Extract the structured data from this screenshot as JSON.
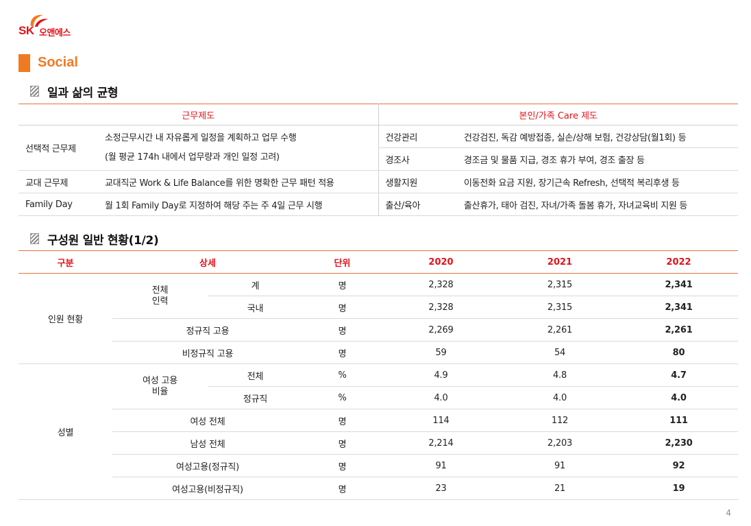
{
  "logo": {
    "brand": "SK",
    "name": "오앤에스",
    "mark_icon": "sk-happiness-wings-icon",
    "brand_color": "#e2121a"
  },
  "section_label": "Social",
  "accent_color": "#f07a22",
  "work_life": {
    "title": "일과 삶의 균형",
    "headers": [
      "근무제도",
      "본인/가족 Care 제도"
    ],
    "rows": [
      {
        "name": "선택적 근무제",
        "desc_line1": "소정근무시간 내 자유롭게 일정을 계획하고 업무 수행",
        "desc_line2": "(월 평균 174h 내에서 업무량과 개인 일정 고려)"
      },
      {
        "name": "교대 근무제",
        "desc": "교대직군 Work & Life Balance를 위한 명확한 근무 패턴 적용"
      },
      {
        "name": "Family Day",
        "desc": "월 1회 Family Day로 지정하여 해당 주는 주 4일 근무 시행"
      }
    ],
    "care": [
      {
        "name": "건강관리",
        "desc": "건강검진, 독감 예방접종, 실손/상해 보험, 건강상담(월1회) 등"
      },
      {
        "name": "경조사",
        "desc": "경조금 및 물품 지급, 경조 휴가 부여, 경조 출장  등"
      },
      {
        "name": "생활지원",
        "desc": "이동전화 요금 지원, 장기근속 Refresh, 선택적 복리후생 등"
      },
      {
        "name": "출산/육아",
        "desc": "출산휴가, 태아 검진, 자녀/가족 돌봄 휴가, 자녀교육비 지원 등"
      }
    ]
  },
  "members": {
    "title": "구성원 일반 현황(1/2)",
    "headers": {
      "category": "구분",
      "detail": "상세",
      "unit": "단위",
      "y2020": "2020",
      "y2021": "2021",
      "y2022": "2022"
    },
    "groups": {
      "staff": "인원 현황",
      "gender": "성별",
      "total_staff_l1": "전체",
      "total_staff_l2": "인력",
      "female_ratio_l1": "여성 고용",
      "female_ratio_l2": "비율"
    },
    "rows": [
      {
        "detail": "계",
        "unit": "명",
        "y2020": "2,328",
        "y2021": "2,315",
        "y2022": "2,341"
      },
      {
        "detail": "국내",
        "unit": "명",
        "y2020": "2,328",
        "y2021": "2,315",
        "y2022": "2,341"
      },
      {
        "detail": "정규직 고용",
        "unit": "명",
        "y2020": "2,269",
        "y2021": "2,261",
        "y2022": "2,261"
      },
      {
        "detail": "비정규직 고용",
        "unit": "명",
        "y2020": "59",
        "y2021": "54",
        "y2022": "80"
      },
      {
        "detail": "전체",
        "unit": "%",
        "y2020": "4.9",
        "y2021": "4.8",
        "y2022": "4.7"
      },
      {
        "detail": "정규직",
        "unit": "%",
        "y2020": "4.0",
        "y2021": "4.0",
        "y2022": "4.0"
      },
      {
        "detail": "여성 전체",
        "unit": "명",
        "y2020": "114",
        "y2021": "112",
        "y2022": "111"
      },
      {
        "detail": "남성 전체",
        "unit": "명",
        "y2020": "2,214",
        "y2021": "2,203",
        "y2022": "2,230"
      },
      {
        "detail": "여성고용(정규직)",
        "unit": "명",
        "y2020": "91",
        "y2021": "91",
        "y2022": "92"
      },
      {
        "detail": "여성고용(비정규직)",
        "unit": "명",
        "y2020": "23",
        "y2021": "21",
        "y2022": "19"
      }
    ]
  },
  "page_number": "4"
}
